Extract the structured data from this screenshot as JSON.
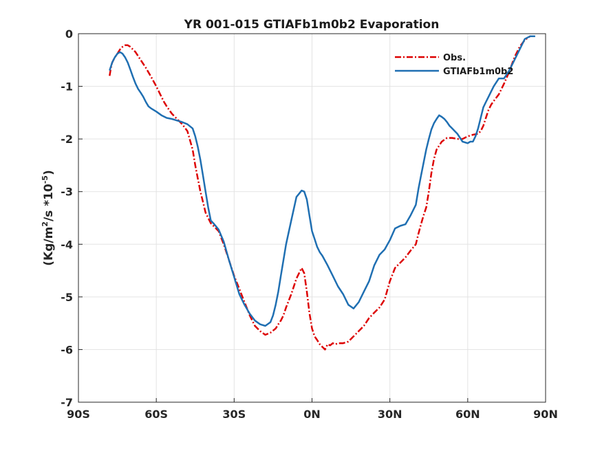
{
  "chart_data": {
    "type": "line",
    "title": "YR 001-015 GTIAFb1m0b2 Evaporation",
    "xlabel": "",
    "ylabel_base": "(Kg/m",
    "ylabel_sup1": "2",
    "ylabel_mid": "/s *10",
    "ylabel_sup2": "-5",
    "ylabel_end": ")",
    "xlim": [
      -90,
      90
    ],
    "ylim": [
      -7,
      0
    ],
    "grid": true,
    "legend_position": "top-right",
    "x_ticks": [
      {
        "value": -90,
        "label": "90S"
      },
      {
        "value": -60,
        "label": "60S"
      },
      {
        "value": -30,
        "label": "30S"
      },
      {
        "value": 0,
        "label": "0N"
      },
      {
        "value": 30,
        "label": "30N"
      },
      {
        "value": 60,
        "label": "60N"
      },
      {
        "value": 90,
        "label": "90N"
      }
    ],
    "y_ticks": [
      {
        "value": 0,
        "label": "0"
      },
      {
        "value": -1,
        "label": "-1"
      },
      {
        "value": -2,
        "label": "-2"
      },
      {
        "value": -3,
        "label": "-3"
      },
      {
        "value": -4,
        "label": "-4"
      },
      {
        "value": -5,
        "label": "-5"
      },
      {
        "value": -6,
        "label": "-6"
      },
      {
        "value": -7,
        "label": "-7"
      }
    ],
    "series": [
      {
        "name": "Obs.",
        "color": "#dd0000",
        "style": "dashdot",
        "x": [
          -78,
          -77.5,
          -77,
          -76,
          -75,
          -74,
          -73,
          -72,
          -71,
          -70,
          -68,
          -66,
          -64,
          -62,
          -60,
          -59,
          -58,
          -57,
          -56,
          -55,
          -54,
          -52,
          -50,
          -48,
          -46,
          -45,
          -44,
          -43,
          -42,
          -41,
          -40,
          -39,
          -38,
          -36,
          -34,
          -32,
          -30,
          -28,
          -26,
          -24,
          -22,
          -20,
          -18,
          -16,
          -14,
          -13,
          -12,
          -11,
          -10,
          -8,
          -6,
          -4,
          -3,
          -2,
          -1,
          0,
          1,
          2,
          3,
          4,
          5,
          6,
          7,
          8,
          9,
          10,
          12,
          14,
          16,
          18,
          20,
          22,
          24,
          26,
          28,
          30,
          32,
          34,
          36,
          38,
          40,
          41,
          42,
          43,
          44,
          45,
          46,
          47,
          48,
          50,
          52,
          54,
          56,
          58,
          60,
          62,
          64,
          65,
          66,
          67,
          68,
          69,
          70,
          72,
          74,
          76,
          78,
          80,
          82,
          84,
          86
        ],
        "y": [
          -0.8,
          -0.65,
          -0.55,
          -0.45,
          -0.38,
          -0.3,
          -0.25,
          -0.22,
          -0.22,
          -0.25,
          -0.35,
          -0.5,
          -0.65,
          -0.82,
          -1.0,
          -1.1,
          -1.2,
          -1.3,
          -1.38,
          -1.45,
          -1.52,
          -1.62,
          -1.72,
          -1.85,
          -2.2,
          -2.5,
          -2.75,
          -3.0,
          -3.2,
          -3.4,
          -3.5,
          -3.6,
          -3.65,
          -3.75,
          -4.0,
          -4.3,
          -4.6,
          -4.85,
          -5.1,
          -5.35,
          -5.55,
          -5.65,
          -5.72,
          -5.68,
          -5.6,
          -5.52,
          -5.45,
          -5.35,
          -5.2,
          -4.95,
          -4.65,
          -4.45,
          -4.55,
          -4.9,
          -5.3,
          -5.6,
          -5.75,
          -5.82,
          -5.9,
          -5.95,
          -6.0,
          -5.9,
          -5.92,
          -5.88,
          -5.9,
          -5.88,
          -5.88,
          -5.85,
          -5.75,
          -5.65,
          -5.55,
          -5.4,
          -5.3,
          -5.2,
          -5.05,
          -4.7,
          -4.45,
          -4.35,
          -4.25,
          -4.12,
          -4.0,
          -3.8,
          -3.62,
          -3.45,
          -3.3,
          -3.0,
          -2.65,
          -2.38,
          -2.2,
          -2.05,
          -1.98,
          -1.98,
          -2.0,
          -2.0,
          -1.95,
          -1.92,
          -1.9,
          -1.85,
          -1.75,
          -1.6,
          -1.45,
          -1.35,
          -1.28,
          -1.15,
          -0.95,
          -0.72,
          -0.45,
          -0.25,
          -0.12,
          -0.05,
          -0.05
        ]
      },
      {
        "name": "GTIAFb1m0b2",
        "color": "#1f6fb2",
        "style": "solid",
        "x": [
          -78,
          -77,
          -76,
          -75,
          -74,
          -73,
          -72,
          -71,
          -70,
          -69,
          -68,
          -67,
          -66,
          -65,
          -64,
          -63,
          -62,
          -60,
          -58,
          -56,
          -54,
          -52,
          -50,
          -48,
          -46,
          -45,
          -44,
          -43,
          -42,
          -41,
          -40,
          -39,
          -38,
          -36,
          -34,
          -32,
          -30,
          -28,
          -26,
          -24,
          -22,
          -20,
          -18,
          -16,
          -15,
          -14,
          -13,
          -12,
          -11,
          -10,
          -8,
          -6,
          -4,
          -3,
          -2,
          -1,
          0,
          1,
          2,
          3,
          4,
          6,
          8,
          10,
          12,
          14,
          16,
          18,
          20,
          22,
          24,
          26,
          28,
          30,
          32,
          34,
          36,
          38,
          40,
          41,
          42,
          43,
          44,
          45,
          46,
          47,
          48,
          49,
          50,
          51,
          52,
          53,
          54,
          55,
          56,
          58,
          60,
          61,
          62,
          63,
          64,
          65,
          66,
          67,
          68,
          69,
          70,
          72,
          74,
          76,
          78,
          80,
          82,
          84,
          86
        ],
        "y": [
          -0.7,
          -0.55,
          -0.45,
          -0.38,
          -0.35,
          -0.38,
          -0.45,
          -0.55,
          -0.68,
          -0.82,
          -0.95,
          -1.05,
          -1.12,
          -1.2,
          -1.3,
          -1.38,
          -1.42,
          -1.48,
          -1.55,
          -1.6,
          -1.62,
          -1.65,
          -1.68,
          -1.72,
          -1.8,
          -1.95,
          -2.15,
          -2.4,
          -2.7,
          -3.0,
          -3.3,
          -3.55,
          -3.6,
          -3.72,
          -3.95,
          -4.3,
          -4.62,
          -4.95,
          -5.15,
          -5.32,
          -5.45,
          -5.52,
          -5.55,
          -5.48,
          -5.35,
          -5.15,
          -4.9,
          -4.6,
          -4.3,
          -4.0,
          -3.55,
          -3.1,
          -2.98,
          -3.0,
          -3.15,
          -3.45,
          -3.75,
          -3.9,
          -4.05,
          -4.15,
          -4.22,
          -4.4,
          -4.6,
          -4.8,
          -4.95,
          -5.15,
          -5.22,
          -5.1,
          -4.9,
          -4.7,
          -4.4,
          -4.2,
          -4.1,
          -3.92,
          -3.7,
          -3.65,
          -3.62,
          -3.45,
          -3.25,
          -2.95,
          -2.7,
          -2.45,
          -2.2,
          -2.0,
          -1.82,
          -1.7,
          -1.62,
          -1.55,
          -1.58,
          -1.62,
          -1.68,
          -1.75,
          -1.8,
          -1.85,
          -1.9,
          -2.05,
          -2.08,
          -2.05,
          -2.05,
          -1.95,
          -1.8,
          -1.6,
          -1.4,
          -1.3,
          -1.2,
          -1.1,
          -1.0,
          -0.85,
          -0.85,
          -0.7,
          -0.5,
          -0.3,
          -0.1,
          -0.05,
          -0.05
        ]
      }
    ]
  }
}
